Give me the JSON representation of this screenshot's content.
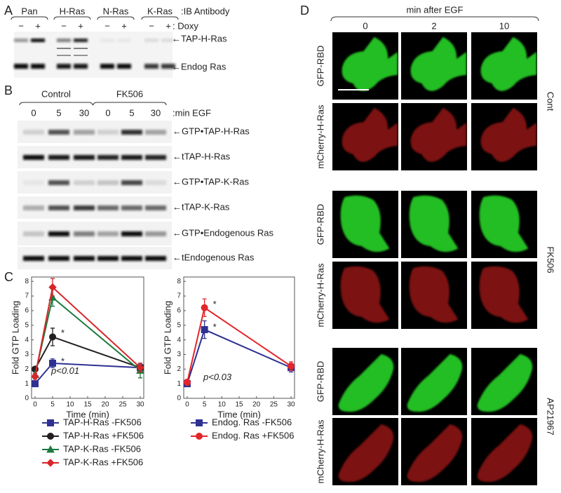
{
  "panel_a": {
    "letter": "A",
    "groups": [
      "Pan",
      "H-Ras",
      "N-Ras",
      "K-Ras"
    ],
    "antibody_label": ":IB Antibody",
    "doxy_signs": [
      "−",
      "+"
    ],
    "doxy_label": ": Doxy",
    "band_labels": [
      "←TAP-H-Ras",
      "←Endog Ras"
    ]
  },
  "panel_b": {
    "letter": "B",
    "conditions": [
      "Control",
      "FK506"
    ],
    "times": [
      "0",
      "5",
      "30",
      "0",
      "5",
      "30"
    ],
    "time_label": ":min EGF",
    "blot_labels": [
      "←GTP•TAP-H-Ras",
      "←tTAP-H-Ras",
      "←GTP•TAP-K-Ras",
      "←tTAP-K-Ras",
      "←GTP•Endogenous Ras",
      "←tEndogenous Ras"
    ]
  },
  "panel_c": {
    "letter": "C"
  },
  "chart_data": [
    {
      "type": "line",
      "y_label": "Fold GTP Loading",
      "x_label": "Time (min)",
      "x": [
        0,
        5,
        30
      ],
      "xlim": [
        -1,
        31
      ],
      "xticks": [
        0,
        5,
        10,
        15,
        20,
        25,
        30
      ],
      "ylim": [
        0,
        8.3
      ],
      "yticks": [
        0,
        1,
        2,
        3,
        4,
        5,
        6,
        7,
        8
      ],
      "series": [
        {
          "name": "TAP-H-Ras -FK506",
          "color": "#2e3192",
          "marker": "square",
          "values": [
            1.0,
            2.4,
            2.1
          ],
          "errors": [
            0.1,
            0.3,
            0.3
          ]
        },
        {
          "name": "TAP-H-Ras +FK506",
          "color": "#231f20",
          "marker": "circle",
          "values": [
            2.0,
            4.2,
            2.1
          ],
          "errors": [
            0.1,
            0.6,
            0.3
          ]
        },
        {
          "name": "TAP-K-Ras -FK506",
          "color": "#1b7a3e",
          "marker": "triangle",
          "values": [
            1.6,
            6.9,
            1.9
          ],
          "errors": [
            0.2,
            0.6,
            0.5
          ]
        },
        {
          "name": "TAP-K-Ras +FK506",
          "color": "#d7262b",
          "marker": "diamond",
          "values": [
            1.5,
            7.6,
            2.1
          ],
          "errors": [
            0.2,
            0.6,
            0.3
          ]
        }
      ],
      "annotations": [
        "*",
        "*",
        "p<0.01"
      ]
    },
    {
      "type": "line",
      "y_label": "Fold GTP Loading",
      "x_label": "Time (min)",
      "x": [
        0,
        5,
        30
      ],
      "xlim": [
        -1,
        31
      ],
      "xticks": [
        0,
        5,
        10,
        15,
        20,
        25,
        30
      ],
      "ylim": [
        0,
        8.3
      ],
      "yticks": [
        0,
        1,
        2,
        3,
        4,
        5,
        6,
        7,
        8
      ],
      "series": [
        {
          "name": "Endog. Ras -FK506",
          "color": "#2e3192",
          "marker": "square",
          "values": [
            1.0,
            4.7,
            2.1
          ],
          "errors": [
            0.1,
            0.6,
            0.3
          ]
        },
        {
          "name": "Endog. Ras +FK506",
          "color": "#e4262b",
          "marker": "circle",
          "values": [
            1.1,
            6.2,
            2.2
          ],
          "errors": [
            0.2,
            0.6,
            0.3
          ]
        }
      ],
      "annotations": [
        "*",
        "*",
        "p<0.03"
      ]
    }
  ],
  "panel_d": {
    "letter": "D",
    "header": "min after EGF",
    "times": [
      "0",
      "2",
      "10"
    ],
    "row_labels": [
      "GFP-RBD",
      "mCherry-H-Ras"
    ],
    "conditions": [
      "Cont",
      "FK506",
      "AP21967"
    ]
  }
}
